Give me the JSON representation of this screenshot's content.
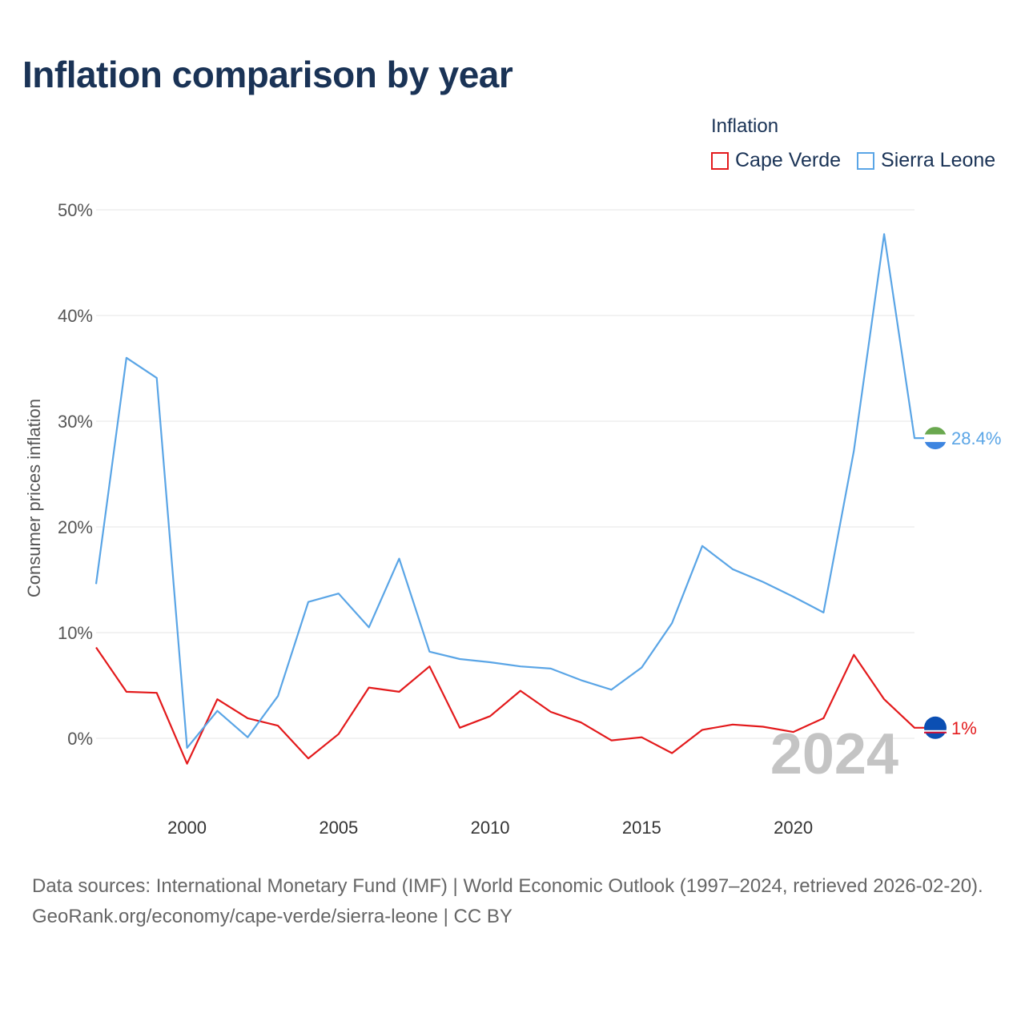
{
  "title": "Inflation comparison by year",
  "legend": {
    "title": "Inflation",
    "items": [
      {
        "name": "Cape Verde",
        "color": "#e31a1c"
      },
      {
        "name": "Sierra Leone",
        "color": "#5aa5e6"
      }
    ]
  },
  "current_year": "2024",
  "end_labels": {
    "cape_verde": "1%",
    "sierra_leone": "28.4%"
  },
  "chart_data": {
    "type": "line",
    "title": "Inflation comparison by year",
    "xlabel": "",
    "ylabel": "Consumer prices inflation",
    "x": [
      1997,
      1998,
      1999,
      2000,
      2001,
      2002,
      2003,
      2004,
      2005,
      2006,
      2007,
      2008,
      2009,
      2010,
      2011,
      2012,
      2013,
      2014,
      2015,
      2016,
      2017,
      2018,
      2019,
      2020,
      2021,
      2022,
      2023,
      2024
    ],
    "xlim": [
      1997,
      2024
    ],
    "ylim": [
      -6,
      50
    ],
    "xticks": [
      2000,
      2005,
      2010,
      2015,
      2020
    ],
    "yticks": [
      0,
      10,
      20,
      30,
      40,
      50
    ],
    "ytick_labels": [
      "0%",
      "10%",
      "20%",
      "30%",
      "40%",
      "50%"
    ],
    "grid": true,
    "legend_position": "top-right",
    "series": [
      {
        "name": "Cape Verde",
        "color": "#e31a1c",
        "values": [
          8.6,
          4.4,
          4.3,
          -2.4,
          3.7,
          1.9,
          1.2,
          -1.9,
          0.4,
          4.8,
          4.4,
          6.8,
          1.0,
          2.1,
          4.5,
          2.5,
          1.5,
          -0.2,
          0.1,
          -1.4,
          0.8,
          1.3,
          1.1,
          0.6,
          1.9,
          7.9,
          3.7,
          1.0
        ]
      },
      {
        "name": "Sierra Leone",
        "color": "#5aa5e6",
        "values": [
          14.6,
          36.0,
          34.1,
          -0.9,
          2.6,
          0.1,
          4.0,
          12.9,
          13.7,
          10.5,
          17.0,
          8.2,
          7.5,
          7.2,
          6.8,
          6.6,
          5.5,
          4.6,
          6.7,
          10.9,
          18.2,
          16.0,
          14.8,
          13.4,
          11.9,
          27.2,
          47.7,
          28.4
        ]
      }
    ]
  },
  "footer": {
    "sources": "Data sources: International Monetary Fund (IMF) | World Economic Outlook (1997–2024, retrieved 2026-02-20).",
    "attribution": "GeoRank.org/economy/cape-verde/sierra-leone | CC BY"
  }
}
